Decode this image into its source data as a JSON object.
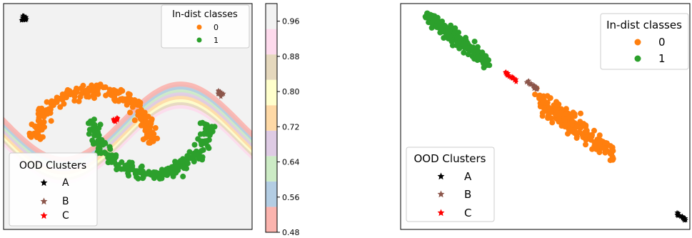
{
  "chart_data": [
    {
      "type": "scatter",
      "title": "",
      "xlabel": "",
      "ylabel": "",
      "grid": false,
      "axis_ticks": "none",
      "background": "decision-boundary heatmap (two-moons boundary band)",
      "series": [
        {
          "name": "0",
          "marker": "circle",
          "color": "#ff7f0e",
          "group": "In-dist classes",
          "shape": "upper moon arc",
          "x": [
            -1.0,
            -0.85,
            -0.7,
            -0.5,
            -0.3,
            -0.1,
            0.1,
            0.3,
            0.5,
            0.7,
            0.85,
            1.0
          ],
          "y": [
            0.0,
            0.45,
            0.7,
            0.88,
            0.96,
            1.0,
            1.0,
            0.96,
            0.88,
            0.7,
            0.45,
            0.0
          ]
        },
        {
          "name": "1",
          "marker": "circle",
          "color": "#2ca02c",
          "group": "In-dist classes",
          "shape": "lower moon arc",
          "x": [
            0.0,
            0.15,
            0.3,
            0.5,
            0.7,
            0.9,
            1.1,
            1.3,
            1.5,
            1.7,
            1.85,
            2.0
          ],
          "y": [
            0.5,
            0.05,
            -0.2,
            -0.38,
            -0.46,
            -0.5,
            -0.5,
            -0.46,
            -0.38,
            -0.2,
            0.05,
            0.5
          ]
        },
        {
          "name": "A",
          "marker": "star",
          "color": "#000000",
          "group": "OOD Clusters",
          "x": [
            -1.2
          ],
          "y": [
            2.2
          ]
        },
        {
          "name": "B",
          "marker": "star",
          "color": "#8c564b",
          "group": "OOD Clusters",
          "x": [
            2.2
          ],
          "y": [
            0.9
          ]
        },
        {
          "name": "C",
          "marker": "star",
          "color": "#ff0000",
          "group": "OOD Clusters",
          "x": [
            0.4
          ],
          "y": [
            0.45
          ]
        }
      ],
      "legends": [
        {
          "title": "In-dist classes",
          "placement": "top-right",
          "entries": [
            "0",
            "1"
          ]
        },
        {
          "title": "OOD Clusters",
          "placement": "bottom-left",
          "entries": [
            "A",
            "B",
            "C"
          ]
        }
      ]
    },
    {
      "type": "colorbar",
      "colormap": "Pastel1",
      "range": [
        0.48,
        1.0
      ],
      "ticks": [
        "0.96",
        "0.88",
        "0.80",
        "0.72",
        "0.64",
        "0.56",
        "0.48"
      ],
      "tick_values": [
        0.96,
        0.88,
        0.8,
        0.72,
        0.64,
        0.56,
        0.48
      ],
      "bands": [
        {
          "from": 0.48,
          "to": 0.5378,
          "color": "#fbb4ae"
        },
        {
          "from": 0.5378,
          "to": 0.5956,
          "color": "#b3cde3"
        },
        {
          "from": 0.5956,
          "to": 0.6533,
          "color": "#ccebc5"
        },
        {
          "from": 0.6533,
          "to": 0.7111,
          "color": "#decbe4"
        },
        {
          "from": 0.7111,
          "to": 0.7689,
          "color": "#fed9a6"
        },
        {
          "from": 0.7689,
          "to": 0.8267,
          "color": "#ffffcc"
        },
        {
          "from": 0.8267,
          "to": 0.8844,
          "color": "#e5d8bd"
        },
        {
          "from": 0.8844,
          "to": 0.9422,
          "color": "#fddaec"
        },
        {
          "from": 0.9422,
          "to": 1.0,
          "color": "#f2f2f2"
        }
      ]
    },
    {
      "type": "scatter",
      "title": "",
      "xlabel": "",
      "ylabel": "",
      "grid": false,
      "axis_ticks": "none",
      "series": [
        {
          "name": "1",
          "marker": "circle",
          "color": "#2ca02c",
          "group": "In-dist classes",
          "shape": "diagonal elongated cluster, upper-left",
          "x": [
            0.0,
            0.08,
            0.16,
            0.24,
            0.32,
            0.4,
            0.48,
            0.56,
            0.64,
            0.72
          ],
          "y": [
            1.0,
            0.96,
            0.92,
            0.88,
            0.84,
            0.8,
            0.76,
            0.72,
            0.68,
            0.64
          ]
        },
        {
          "name": "0",
          "marker": "circle",
          "color": "#ff7f0e",
          "group": "In-dist classes",
          "shape": "diagonal elongated cluster, center-right",
          "x": [
            1.3,
            1.4,
            1.5,
            1.6,
            1.7,
            1.8,
            1.9,
            2.0,
            2.1,
            2.2
          ],
          "y": [
            0.35,
            0.3,
            0.25,
            0.2,
            0.15,
            0.1,
            0.05,
            0.0,
            -0.05,
            -0.1
          ]
        },
        {
          "name": "A",
          "marker": "star",
          "color": "#000000",
          "group": "OOD Clusters",
          "x": [
            3.0
          ],
          "y": [
            -0.6
          ]
        },
        {
          "name": "B",
          "marker": "star",
          "color": "#8c564b",
          "group": "OOD Clusters",
          "x": [
            1.25
          ],
          "y": [
            0.45
          ]
        },
        {
          "name": "C",
          "marker": "star",
          "color": "#ff0000",
          "group": "OOD Clusters",
          "x": [
            1.0
          ],
          "y": [
            0.52
          ]
        }
      ],
      "legends": [
        {
          "title": "In-dist classes",
          "placement": "top-right",
          "entries": [
            "0",
            "1"
          ]
        },
        {
          "title": "OOD Clusters",
          "placement": "bottom-left",
          "entries": [
            "A",
            "B",
            "C"
          ]
        }
      ]
    }
  ]
}
